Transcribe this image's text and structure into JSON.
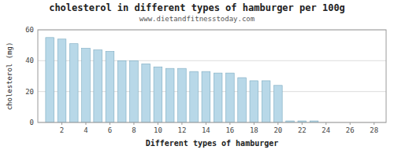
{
  "chart_data": {
    "type": "bar",
    "title": "cholesterol in different types of hamburger per 100g",
    "subtitle": "www.dietandfitnesstoday.com",
    "x_label": "Different types of hamburger",
    "y_label": "cholesterol (mg)",
    "x": [
      1,
      2,
      3,
      4,
      5,
      6,
      7,
      8,
      9,
      10,
      11,
      12,
      13,
      14,
      15,
      16,
      17,
      18,
      19,
      20,
      21,
      22,
      23
    ],
    "values": [
      55,
      54,
      51,
      48,
      47,
      46,
      40,
      40,
      38,
      36,
      35,
      35,
      33,
      33,
      32,
      32,
      29,
      27,
      27,
      24,
      1,
      1,
      1
    ],
    "color": "#b8d8e8",
    "xlim": [
      0,
      29
    ],
    "ylim": [
      0,
      60
    ],
    "xticks": [
      2,
      4,
      6,
      8,
      10,
      12,
      14,
      16,
      18,
      20,
      22,
      24,
      26,
      28
    ],
    "yticks": [
      0,
      20,
      40,
      60
    ],
    "grid": true
  }
}
